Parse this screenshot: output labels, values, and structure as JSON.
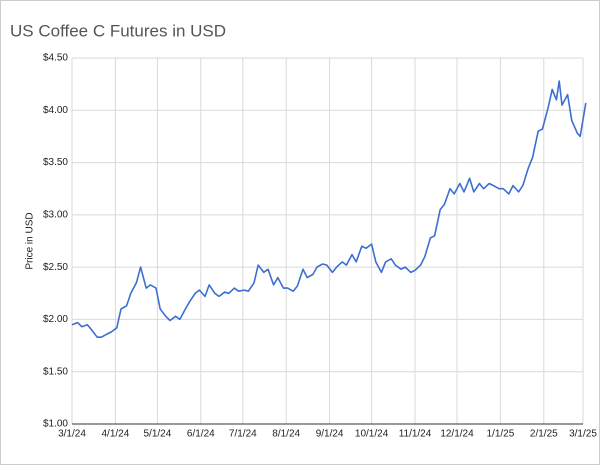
{
  "chart_data": {
    "type": "line",
    "title": "US Coffee C Futures in USD",
    "ylabel": "Price in USD",
    "color": "#3c6fcf",
    "grid": true,
    "x": [
      "3/1/24",
      "3/5/24",
      "3/8/24",
      "3/12/24",
      "3/15/24",
      "3/19/24",
      "3/22/24",
      "3/26/24",
      "3/29/24",
      "4/2/24",
      "4/5/24",
      "4/9/24",
      "4/12/24",
      "4/16/24",
      "4/19/24",
      "4/23/24",
      "4/26/24",
      "4/30/24",
      "5/3/24",
      "5/7/24",
      "5/10/24",
      "5/14/24",
      "5/17/24",
      "5/21/24",
      "5/24/24",
      "5/28/24",
      "5/31/24",
      "6/4/24",
      "6/7/24",
      "6/11/24",
      "6/14/24",
      "6/18/24",
      "6/21/24",
      "6/25/24",
      "6/28/24",
      "7/2/24",
      "7/5/24",
      "7/9/24",
      "7/12/24",
      "7/16/24",
      "7/19/24",
      "7/23/24",
      "7/26/24",
      "7/30/24",
      "8/2/24",
      "8/6/24",
      "8/9/24",
      "8/13/24",
      "8/16/24",
      "8/20/24",
      "8/23/24",
      "8/27/24",
      "8/30/24",
      "9/3/24",
      "9/6/24",
      "9/10/24",
      "9/13/24",
      "9/17/24",
      "9/20/24",
      "9/24/24",
      "9/27/24",
      "10/1/24",
      "10/4/24",
      "10/8/24",
      "10/11/24",
      "10/15/24",
      "10/18/24",
      "10/22/24",
      "10/25/24",
      "10/29/24",
      "11/1/24",
      "11/5/24",
      "11/8/24",
      "11/12/24",
      "11/15/24",
      "11/19/24",
      "11/22/24",
      "11/26/24",
      "11/29/24",
      "12/3/24",
      "12/6/24",
      "12/10/24",
      "12/13/24",
      "12/17/24",
      "12/20/24",
      "12/24/24",
      "12/27/24",
      "12/31/24",
      "1/3/25",
      "1/7/25",
      "1/10/25",
      "1/14/25",
      "1/17/25",
      "1/21/25",
      "1/24/25",
      "1/28/25",
      "1/31/25",
      "2/4/25",
      "2/7/25",
      "2/10/25",
      "2/12/25",
      "2/14/25",
      "2/18/25",
      "2/21/25",
      "2/25/25",
      "2/27/25",
      "3/3/25"
    ],
    "values": [
      1.95,
      1.97,
      1.93,
      1.95,
      1.9,
      1.83,
      1.83,
      1.86,
      1.88,
      1.92,
      2.1,
      2.13,
      2.25,
      2.35,
      2.5,
      2.3,
      2.33,
      2.3,
      2.1,
      2.03,
      1.99,
      2.03,
      2.0,
      2.1,
      2.17,
      2.25,
      2.28,
      2.22,
      2.33,
      2.25,
      2.22,
      2.26,
      2.25,
      2.3,
      2.27,
      2.28,
      2.27,
      2.35,
      2.52,
      2.45,
      2.48,
      2.33,
      2.4,
      2.3,
      2.3,
      2.27,
      2.32,
      2.48,
      2.4,
      2.43,
      2.5,
      2.53,
      2.52,
      2.45,
      2.5,
      2.55,
      2.52,
      2.62,
      2.55,
      2.7,
      2.68,
      2.72,
      2.55,
      2.45,
      2.55,
      2.58,
      2.52,
      2.48,
      2.5,
      2.45,
      2.47,
      2.52,
      2.6,
      2.78,
      2.8,
      3.05,
      3.1,
      3.25,
      3.2,
      3.3,
      3.22,
      3.35,
      3.22,
      3.3,
      3.25,
      3.3,
      3.28,
      3.25,
      3.25,
      3.2,
      3.28,
      3.22,
      3.28,
      3.45,
      3.55,
      3.8,
      3.82,
      4.02,
      4.2,
      4.1,
      4.28,
      4.05,
      4.15,
      3.9,
      3.78,
      3.75,
      4.07
    ],
    "xlim": [
      "3/1/24",
      "3/1/25"
    ],
    "xticks": [
      "3/1/24",
      "4/1/24",
      "5/1/24",
      "6/1/24",
      "7/1/24",
      "8/1/24",
      "9/1/24",
      "10/1/24",
      "11/1/24",
      "12/1/24",
      "1/1/25",
      "2/1/25",
      "3/1/25"
    ],
    "ylim": [
      1,
      4.5
    ],
    "yticks": [
      {
        "value": 1,
        "label": "$1.00"
      },
      {
        "value": 1.5,
        "label": "$1.50"
      },
      {
        "value": 2,
        "label": "$2.00"
      },
      {
        "value": 2.5,
        "label": "$2.50"
      },
      {
        "value": 3,
        "label": "$3.00"
      },
      {
        "value": 3.5,
        "label": "$3.50"
      },
      {
        "value": 4,
        "label": "$4.00"
      },
      {
        "value": 4.5,
        "label": "$4.50"
      }
    ]
  }
}
